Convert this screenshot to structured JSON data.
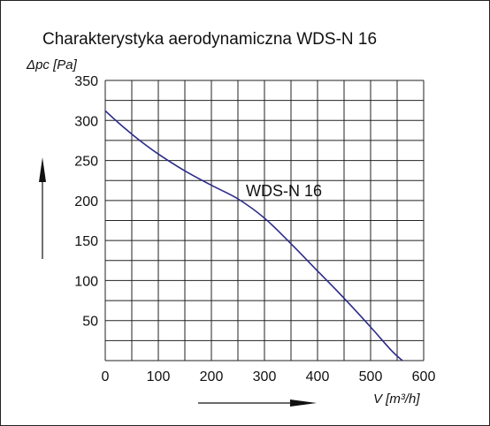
{
  "chart_data": {
    "type": "line",
    "title": "Charakterystyka aerodynamiczna  WDS-N 16",
    "ylabel": "Δpc [Pa]",
    "xlabel": "V [m³/h]",
    "xlim": [
      0,
      600
    ],
    "ylim": [
      0,
      350
    ],
    "x_ticks": [
      "0",
      "100",
      "200",
      "300",
      "400",
      "500",
      "600"
    ],
    "y_ticks": [
      "50",
      "100",
      "150",
      "200",
      "250",
      "300",
      "350"
    ],
    "x_grid_step": 50,
    "y_grid_step": 25,
    "grid": true,
    "line_color": "#2b2b8a",
    "series": [
      {
        "name": "WDS-N 16",
        "x": [
          0,
          25,
          50,
          75,
          100,
          150,
          200,
          250,
          300,
          350,
          400,
          450,
          500,
          540,
          560
        ],
        "y": [
          312,
          297,
          283,
          270,
          258,
          237,
          219,
          202,
          178,
          146,
          112,
          78,
          42,
          12,
          0
        ]
      }
    ]
  }
}
